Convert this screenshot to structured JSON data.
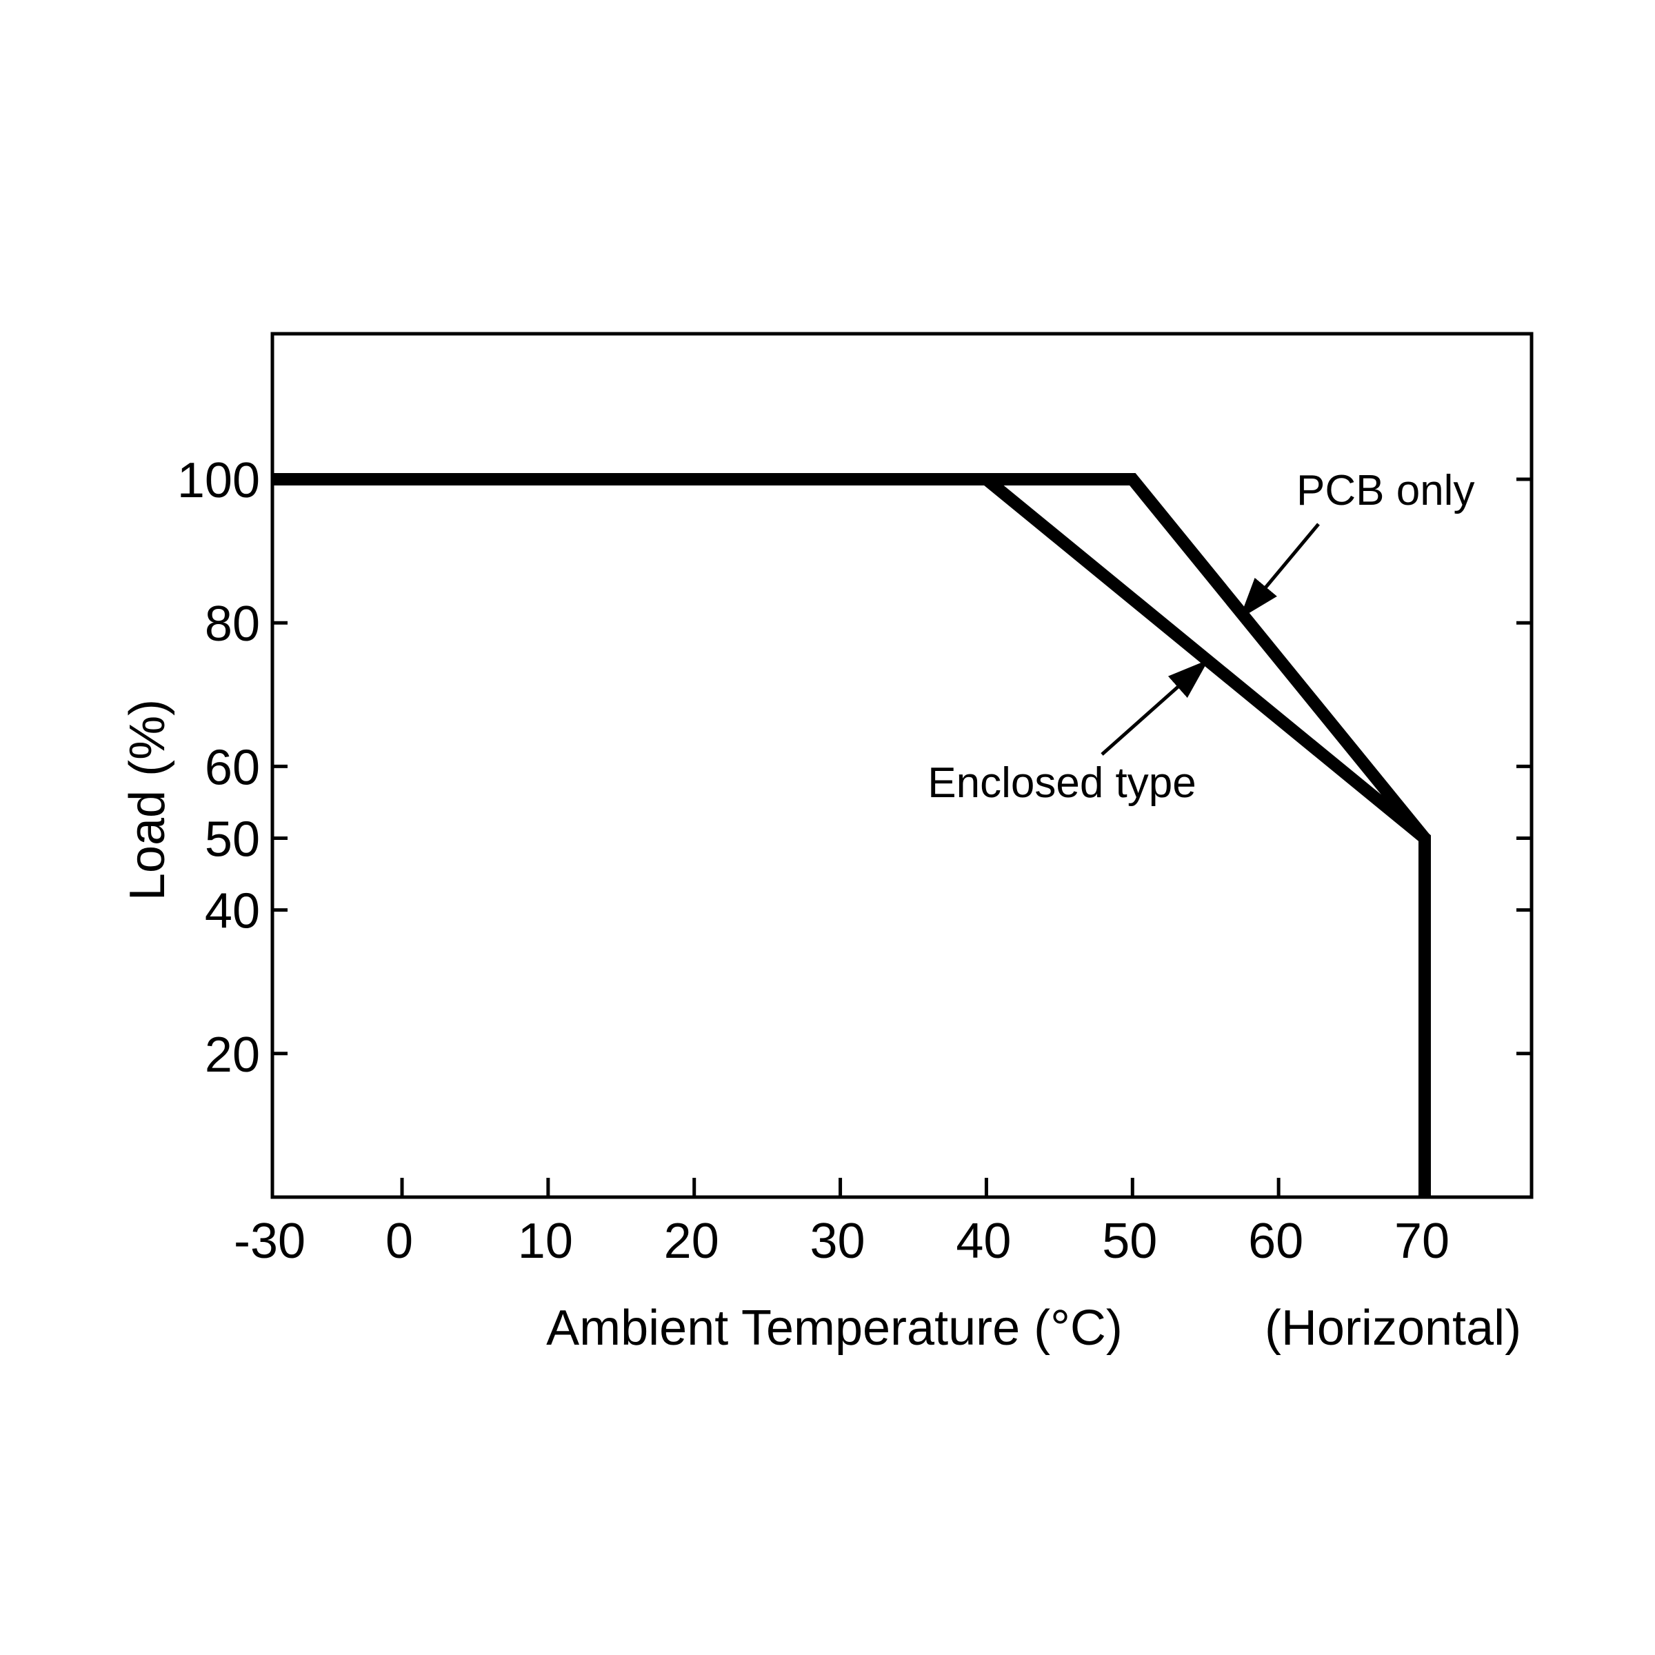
{
  "chart_data": {
    "type": "line",
    "xlabel": "Ambient Temperature (°C)",
    "xlabel_note": "(Horizontal)",
    "ylabel": "Load (%)",
    "x_ticks": [
      -30,
      0,
      10,
      20,
      30,
      40,
      50,
      60,
      70
    ],
    "y_ticks": [
      20,
      40,
      50,
      60,
      80,
      100
    ],
    "xlim": [
      -30,
      78
    ],
    "ylim": [
      0,
      120
    ],
    "grid": false,
    "legend": "none",
    "series": [
      {
        "name": "PCB only",
        "x": [
          -30,
          50,
          70,
          70
        ],
        "y": [
          100,
          100,
          50,
          0
        ]
      },
      {
        "name": "Enclosed type",
        "x": [
          -30,
          40,
          70,
          70
        ],
        "y": [
          100,
          100,
          50,
          0
        ]
      }
    ],
    "annotations": [
      {
        "text": "PCB only",
        "series": "PCB only",
        "arrow_to": [
          57.5,
          81
        ]
      },
      {
        "text": "Enclosed type",
        "series": "Enclosed type",
        "arrow_to": [
          55,
          74.5
        ]
      }
    ],
    "colors": {
      "line": "#000000",
      "frame": "#000000",
      "background": "#ffffff"
    }
  }
}
